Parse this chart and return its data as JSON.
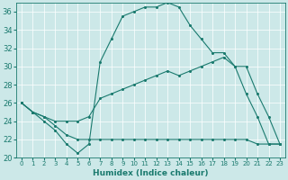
{
  "xlabel": "Humidex (Indice chaleur)",
  "background_color": "#cce8e8",
  "line_color": "#1a7a6e",
  "grid_color": "#b0d4d4",
  "xlim": [
    -0.5,
    23.5
  ],
  "ylim": [
    20,
    37
  ],
  "yticks": [
    20,
    22,
    24,
    26,
    28,
    30,
    32,
    34,
    36
  ],
  "xticks": [
    0,
    1,
    2,
    3,
    4,
    5,
    6,
    7,
    8,
    9,
    10,
    11,
    12,
    13,
    14,
    15,
    16,
    17,
    18,
    19,
    20,
    21,
    22,
    23
  ],
  "line1_x": [
    0,
    1,
    2,
    3,
    4,
    5,
    6,
    7,
    8,
    9,
    10,
    11,
    12,
    13,
    14,
    15,
    16,
    17,
    18,
    19,
    20,
    21,
    22,
    23
  ],
  "line1_y": [
    26,
    25,
    24,
    23,
    21.5,
    20.5,
    21.5,
    30.5,
    33.0,
    35.5,
    36.0,
    36.5,
    36.5,
    37.0,
    36.5,
    34.5,
    33.0,
    31.5,
    31.5,
    30.0,
    27.0,
    24.5,
    21.5,
    21.5
  ],
  "line2_x": [
    0,
    1,
    2,
    3,
    4,
    5,
    6,
    7,
    8,
    9,
    10,
    11,
    12,
    13,
    14,
    15,
    16,
    17,
    18,
    19,
    20,
    21,
    22,
    23
  ],
  "line2_y": [
    26,
    25,
    24.5,
    24,
    24,
    24,
    24.5,
    26.5,
    27,
    27.5,
    28,
    28.5,
    29,
    29.5,
    29,
    29.5,
    30,
    30.5,
    31,
    30,
    30,
    27,
    24.5,
    21.5
  ],
  "line3_x": [
    0,
    1,
    2,
    3,
    4,
    5,
    6,
    7,
    8,
    9,
    10,
    11,
    12,
    13,
    14,
    15,
    16,
    17,
    18,
    19,
    20,
    21,
    22,
    23
  ],
  "line3_y": [
    26,
    25,
    24.5,
    23.5,
    22.5,
    22,
    22,
    22,
    22,
    22,
    22,
    22,
    22,
    22,
    22,
    22,
    22,
    22,
    22,
    22,
    22,
    21.5,
    21.5,
    21.5
  ]
}
